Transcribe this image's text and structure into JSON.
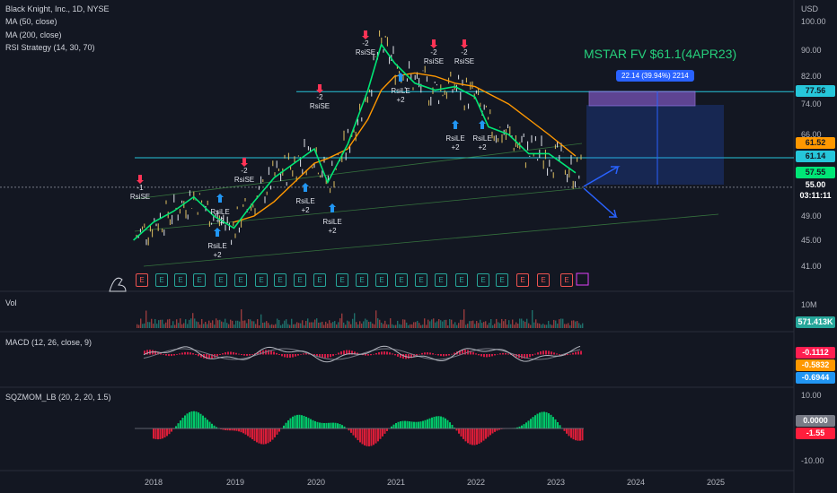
{
  "header": {
    "symbol_title": "Black Knight, Inc., 1D, NYSE",
    "indicators": [
      "MA (50, close)",
      "MA (200, close)",
      "RSI Strategy (14, 30, 70)"
    ]
  },
  "annotation": {
    "fair_value": "MSTAR FV $61.1(4APR23)",
    "measure_label": "22.14 (39.94%) 2214"
  },
  "price_axis": {
    "currency": "USD",
    "ticks": [
      "100.00",
      "90.00",
      "82.00",
      "74.00",
      "66.00",
      "49.00",
      "45.00",
      "41.00"
    ]
  },
  "price_tags": [
    {
      "value": "77.56",
      "color": "#26c6da",
      "text_color": "#131722"
    },
    {
      "value": "61.52",
      "color": "#ff9800",
      "text_color": "#131722"
    },
    {
      "value": "61.14",
      "color": "#26c6da",
      "text_color": "#131722"
    },
    {
      "value": "57.55",
      "color": "#00e676",
      "text_color": "#131722"
    },
    {
      "value": "55.00",
      "color": "#131722",
      "text_color": "#ffffff"
    },
    {
      "value": "03:11:11",
      "color": "#131722",
      "text_color": "#ffffff"
    }
  ],
  "volume_pane": {
    "label": "Vol",
    "tick": "10M",
    "last": "571.413K"
  },
  "macd_pane": {
    "label": "MACD (12, 26, close, 9)",
    "tags": [
      "-0.1112",
      "-0.5832",
      "-0.6944"
    ]
  },
  "sqz_pane": {
    "label": "SQZMOM_LB (20, 2, 20, 1.5)",
    "ticks": [
      "10.00",
      "-10.00"
    ],
    "tags": [
      "0.0000",
      "-1.55"
    ]
  },
  "time_axis": [
    "2018",
    "2019",
    "2020",
    "2021",
    "2022",
    "2023",
    "2024",
    "2025"
  ],
  "signals": [
    {
      "text": "-1\nRsiSE",
      "arrow": "down"
    },
    {
      "text": "RsiLE\n+2",
      "arrow": "up"
    },
    {
      "text": "-2\nRsiSE",
      "arrow": "down"
    },
    {
      "text": "RsiLE\n+2",
      "arrow": "up"
    },
    {
      "text": "RsiLE\n+2",
      "arrow": "up"
    },
    {
      "text": "-2\nRsiSE",
      "arrow": "down"
    },
    {
      "text": "-2\nRsiSE",
      "arrow": "down"
    },
    {
      "text": "RsiLE\n+2",
      "arrow": "up"
    },
    {
      "text": "-2\nRsiSE",
      "arrow": "down"
    },
    {
      "text": "-2\nRsiSE",
      "arrow": "down"
    },
    {
      "text": "RsiLE\n+2",
      "arrow": "up"
    },
    {
      "text": "RsiLE\n+2",
      "arrow": "up"
    },
    {
      "text": "RsiLE\n+2",
      "arrow": "up"
    }
  ],
  "earnings_markers": [
    "E",
    "E",
    "E",
    "E",
    "E",
    "E",
    "E",
    "E",
    "E",
    "E",
    "E",
    "E",
    "E",
    "E",
    "E",
    "E",
    "E",
    "E",
    "E",
    "E",
    "E",
    "E"
  ],
  "chart_data": {
    "type": "line",
    "title": "Black Knight, Inc., 1D, NYSE",
    "x": [
      "2017-10",
      "2018-01",
      "2018-04",
      "2018-07",
      "2018-10",
      "2019-01",
      "2019-04",
      "2019-07",
      "2019-10",
      "2020-01",
      "2020-03",
      "2020-06",
      "2020-09",
      "2020-11",
      "2021-01",
      "2021-04",
      "2021-07",
      "2021-10",
      "2022-01",
      "2022-03",
      "2022-06",
      "2022-09",
      "2022-12",
      "2023-04"
    ],
    "series": [
      {
        "name": "MA (50, close)",
        "values": [
          45,
          48,
          50,
          53,
          49,
          47,
          52,
          57,
          60,
          63,
          56,
          64,
          78,
          92,
          86,
          80,
          78,
          79,
          76,
          68,
          66,
          62,
          62,
          58
        ]
      },
      {
        "name": "MA (200, close)",
        "values": [
          null,
          null,
          null,
          null,
          null,
          48,
          49,
          52,
          56,
          60,
          61,
          63,
          70,
          78,
          82,
          83,
          82,
          80,
          79,
          77,
          74,
          70,
          66,
          61.5
        ]
      }
    ],
    "ylim": [
      38,
      104
    ],
    "price_levels": [
      77.56,
      61.14,
      55.0
    ],
    "fair_value": 61.1
  }
}
